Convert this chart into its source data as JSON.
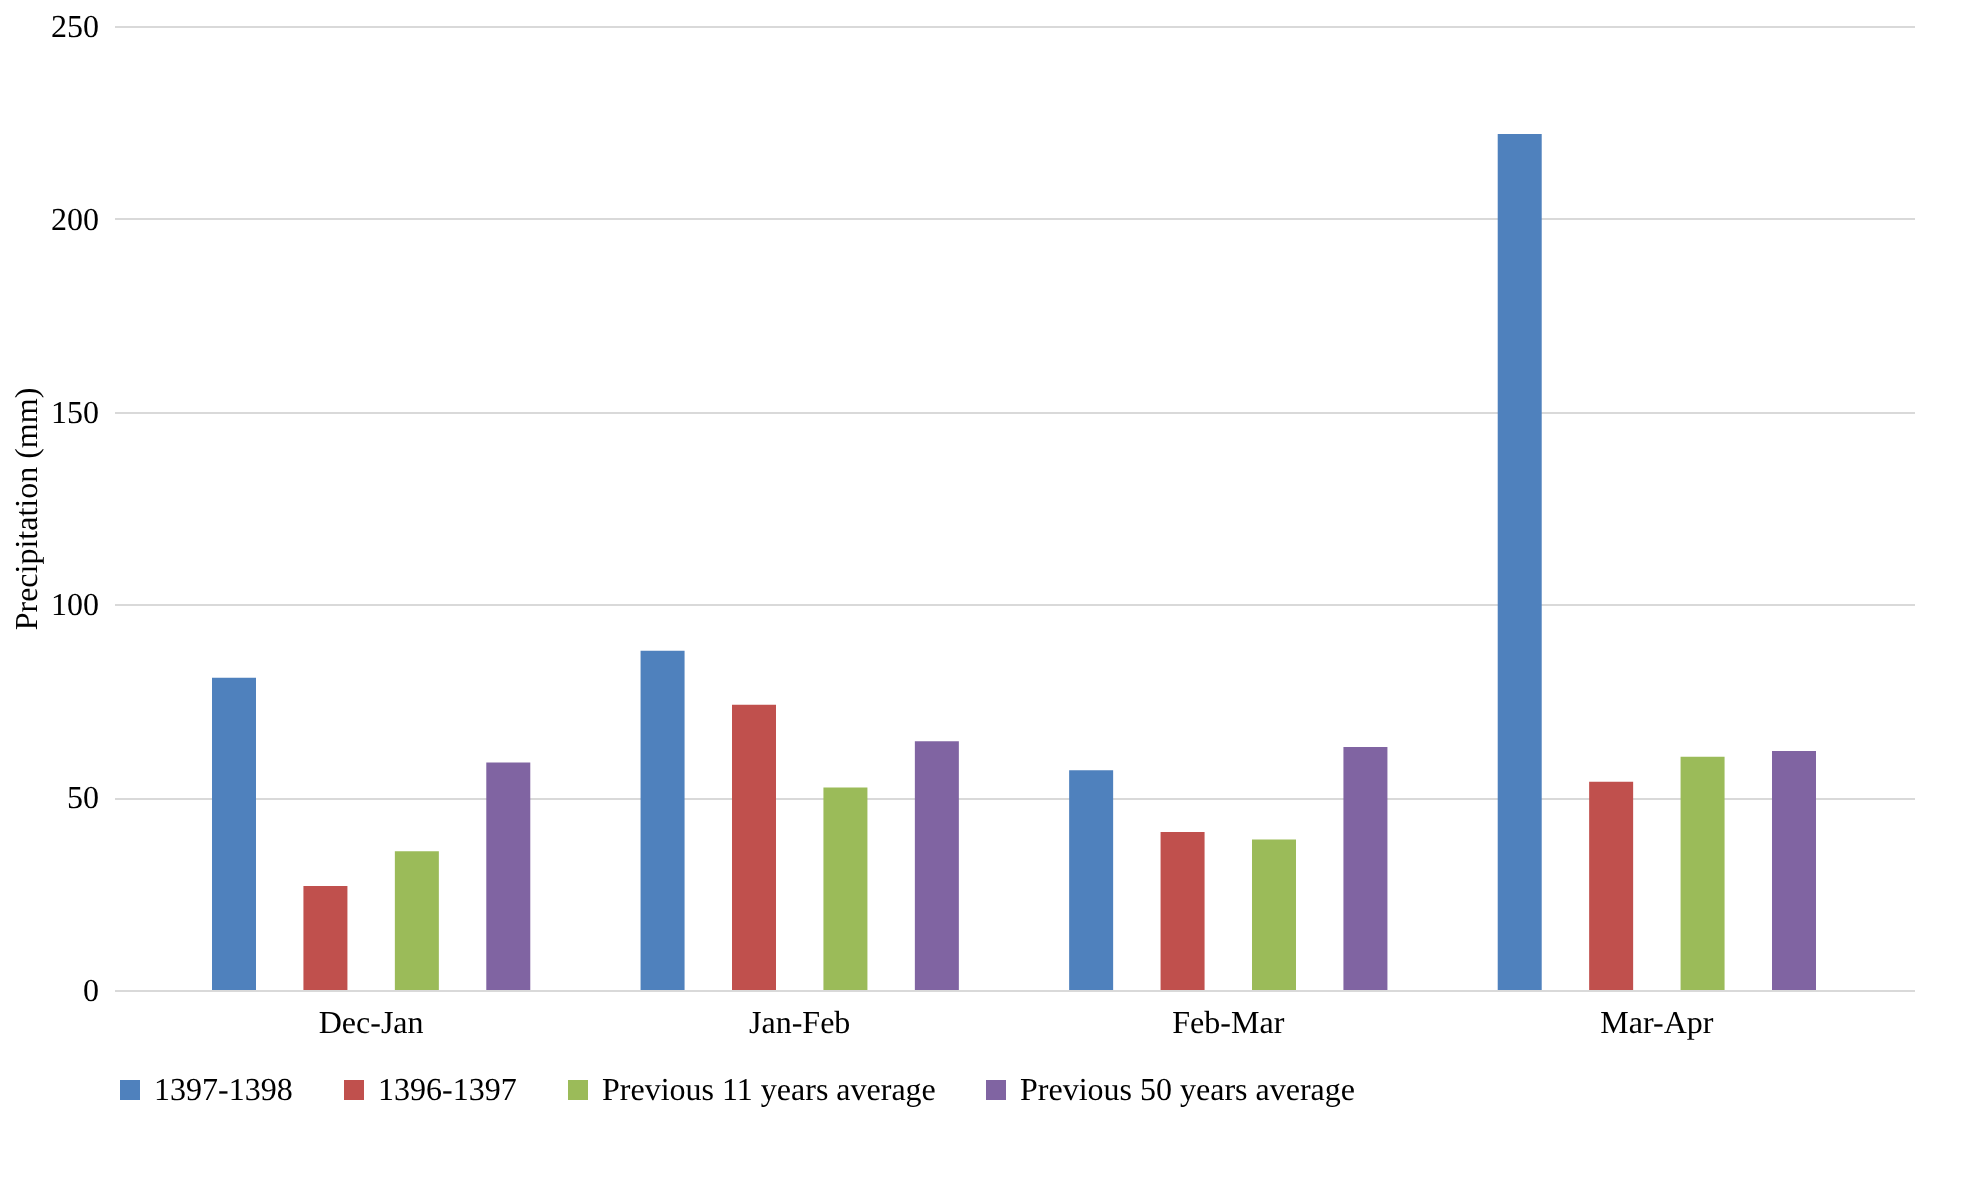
{
  "chart_data": {
    "type": "bar",
    "ylabel": "Precipitation (mm)",
    "categories": [
      "Dec-Jan",
      "Jan-Feb",
      "Feb-Mar",
      "Mar-Apr"
    ],
    "series": [
      {
        "name": "1397-1398",
        "color": "#4f81bd",
        "values": [
          81,
          88,
          57,
          222
        ]
      },
      {
        "name": "1396-1397",
        "color": "#c0504d",
        "values": [
          27,
          74,
          41,
          54
        ]
      },
      {
        "name": "Previous 11 years average",
        "color": "#9bbb59",
        "values": [
          36,
          52.5,
          39,
          60.5
        ]
      },
      {
        "name": "Previous 50 years average",
        "color": "#8064a2",
        "values": [
          59,
          64.5,
          63,
          62
        ]
      }
    ],
    "ylim": [
      0,
      250
    ],
    "yticks": [
      0,
      50,
      100,
      150,
      200,
      250
    ],
    "grid": "y",
    "legend": "bottom"
  }
}
